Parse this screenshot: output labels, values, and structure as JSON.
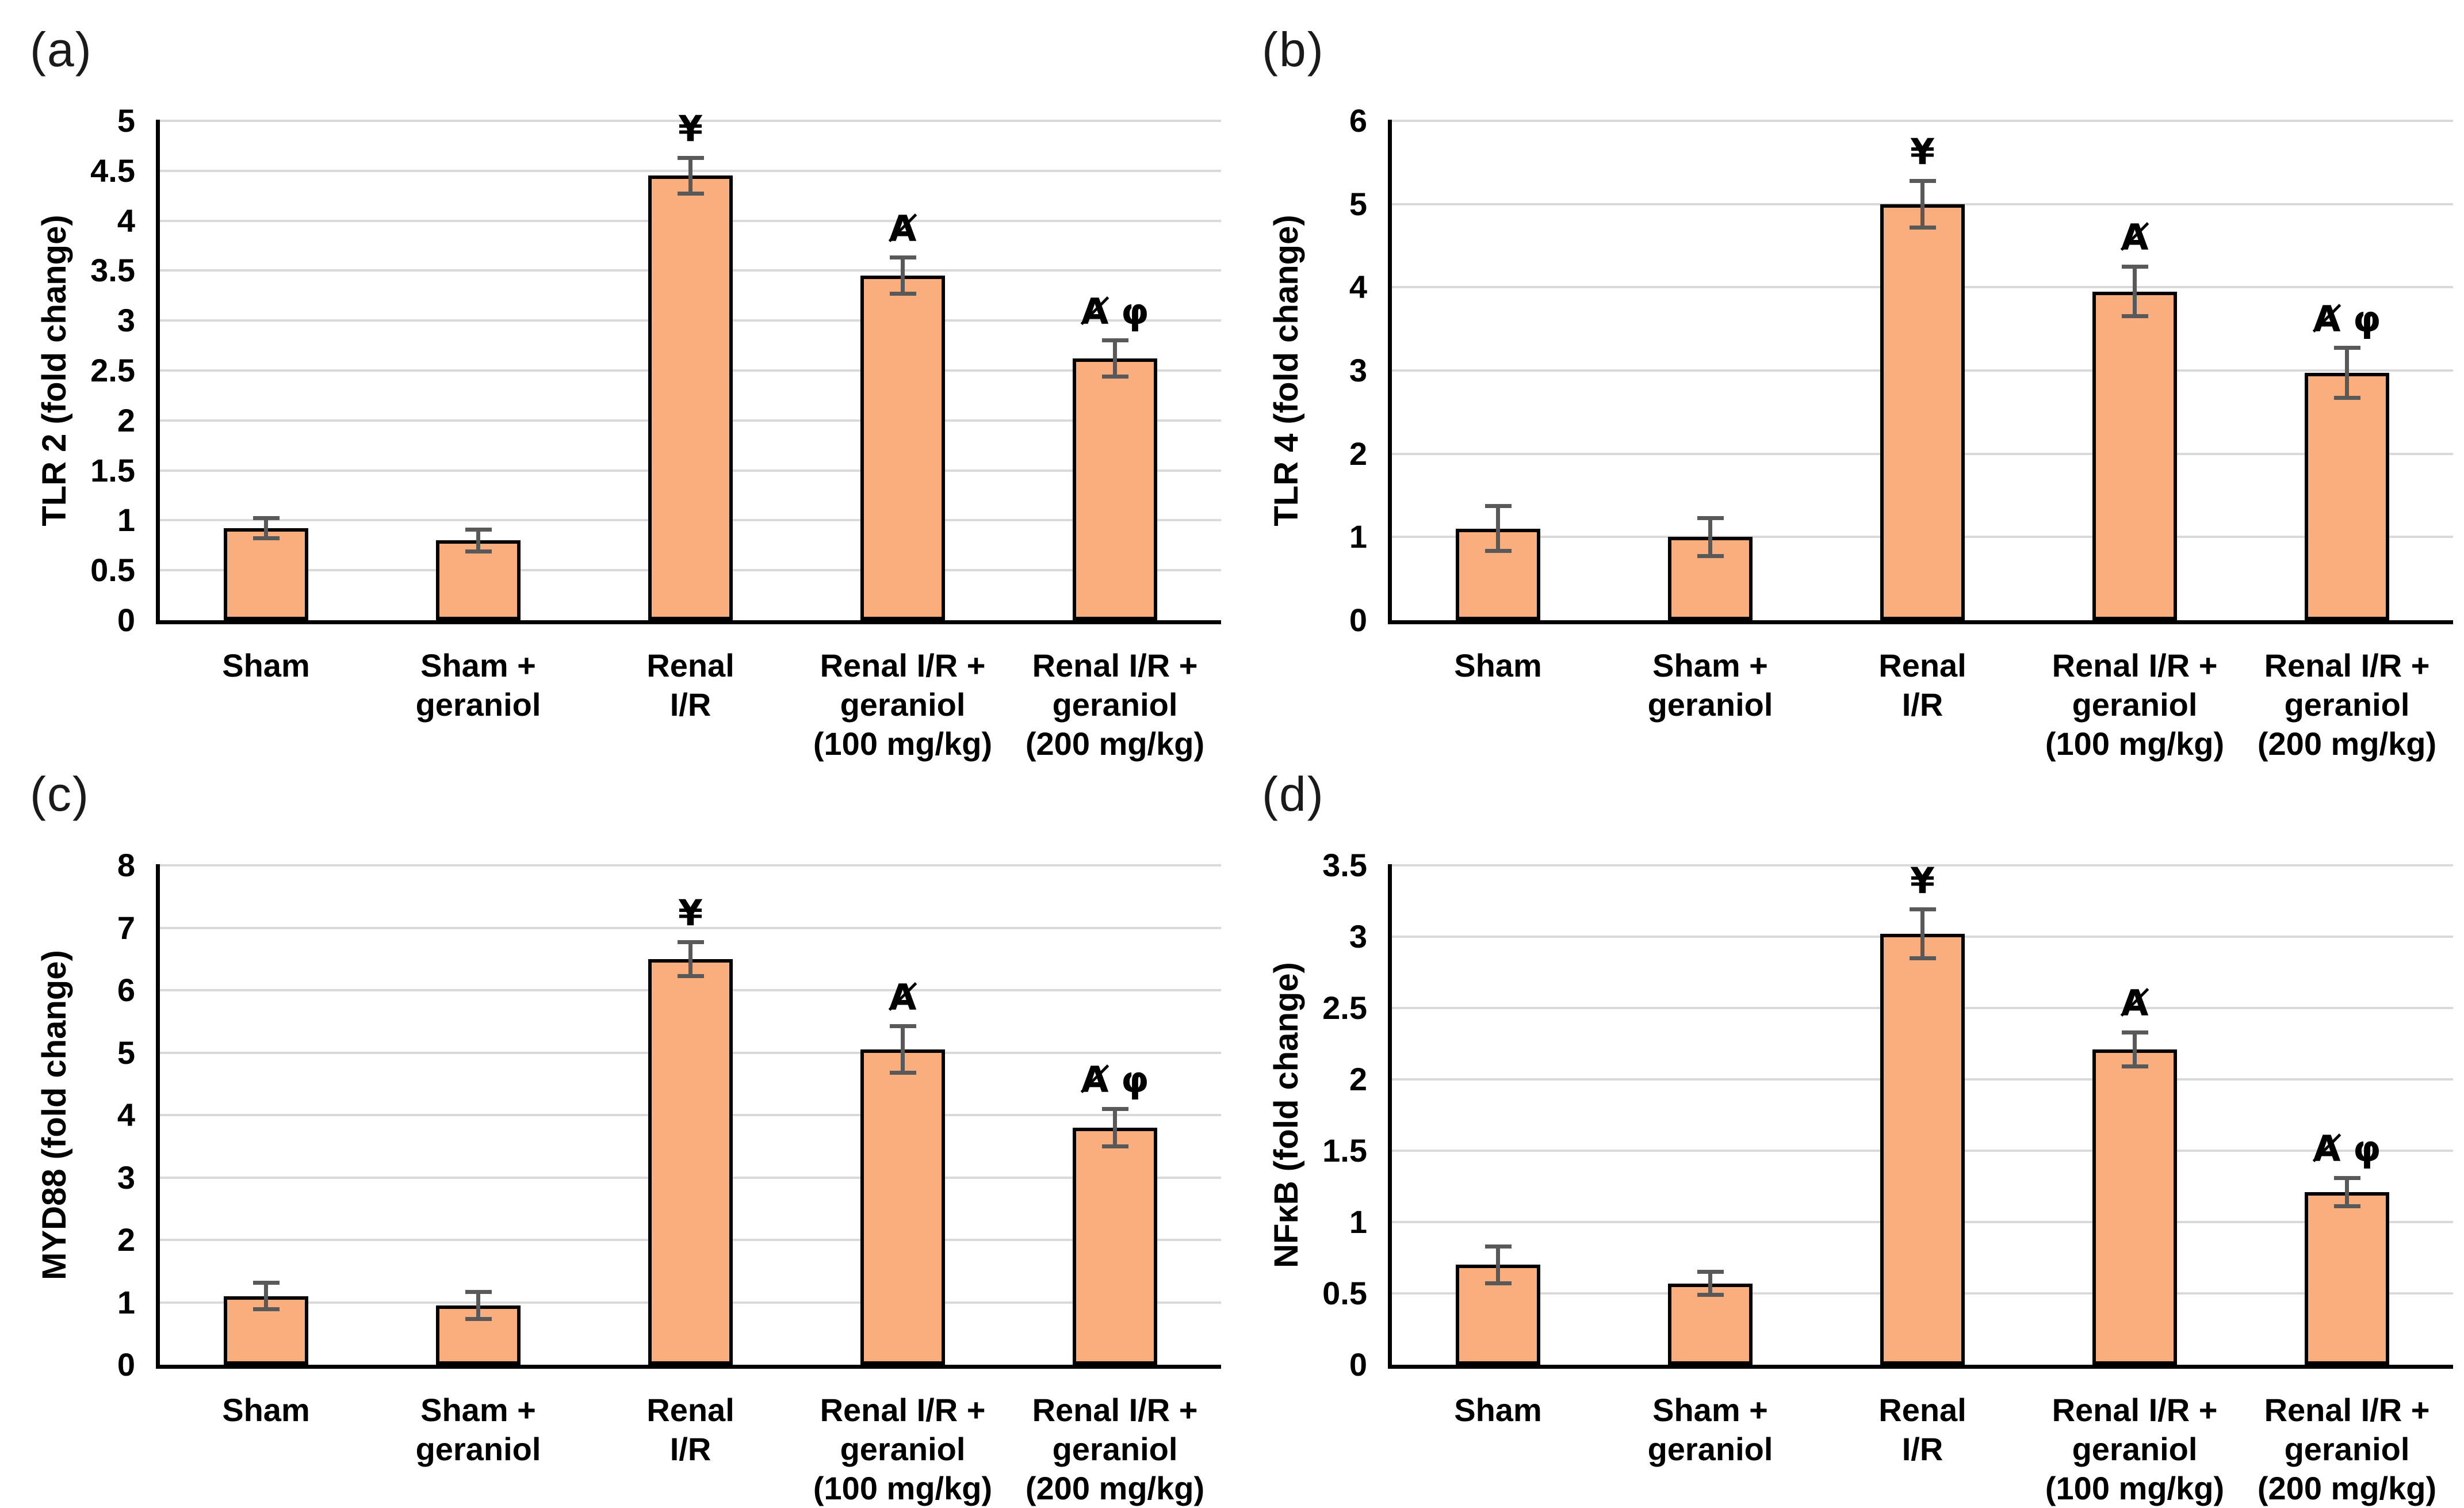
{
  "figure": {
    "panel_labels": [
      "(a)",
      "(b)",
      "(c)",
      "(d)"
    ],
    "colors": {
      "bar_fill": "#FBAE7D",
      "bar_border": "#000000",
      "error_bar": "#595959",
      "gridline": "#D9D9D9",
      "axis": "#000000",
      "background": "#FFFFFF"
    }
  },
  "chart_data": [
    {
      "type": "bar",
      "panel_label": "(a)",
      "ylabel": "TLR 2 (fold change)",
      "ylim": [
        0,
        5
      ],
      "yticks": [
        "5",
        "4.5",
        "4",
        "3.5",
        "3",
        "2.5",
        "2",
        "1.5",
        "1",
        "0.5",
        "0"
      ],
      "grid": true,
      "categories": [
        "Sham",
        "Sham + geraniol",
        "Renal I/R",
        "Renal I/R + geraniol (100 mg/kg)",
        "Renal I/R + geraniol (200 mg/kg)"
      ],
      "category_lines": [
        [
          "Sham"
        ],
        [
          "Sham +",
          "geraniol"
        ],
        [
          "Renal",
          "I/R"
        ],
        [
          "Renal I/R +",
          "geraniol",
          "(100 mg/kg)"
        ],
        [
          "Renal I/R +",
          "geraniol",
          "(200 mg/kg)"
        ]
      ],
      "values": [
        0.92,
        0.8,
        4.45,
        3.45,
        2.62
      ],
      "errors": [
        0.1,
        0.11,
        0.18,
        0.18,
        0.18
      ],
      "symbols": [
        "",
        "",
        "¥",
        "Ⱥ",
        "Ⱥ φ"
      ]
    },
    {
      "type": "bar",
      "panel_label": "(b)",
      "ylabel": "TLR 4 (fold change)",
      "ylim": [
        0,
        6
      ],
      "yticks": [
        "6",
        "5",
        "4",
        "3",
        "2",
        "1",
        "0"
      ],
      "grid": true,
      "categories": [
        "Sham",
        "Sham + geraniol",
        "Renal I/R",
        "Renal I/R + geraniol (100 mg/kg)",
        "Renal I/R + geraniol (200 mg/kg)"
      ],
      "category_lines": [
        [
          "Sham"
        ],
        [
          "Sham +",
          "geraniol"
        ],
        [
          "Renal",
          "I/R"
        ],
        [
          "Renal I/R +",
          "geraniol",
          "(100 mg/kg)"
        ],
        [
          "Renal I/R +",
          "geraniol",
          "(200 mg/kg)"
        ]
      ],
      "values": [
        1.1,
        1.0,
        5.0,
        3.95,
        2.97
      ],
      "errors": [
        0.27,
        0.23,
        0.28,
        0.3,
        0.3
      ],
      "symbols": [
        "",
        "",
        "¥",
        "Ⱥ",
        "Ⱥ φ"
      ]
    },
    {
      "type": "bar",
      "panel_label": "(c)",
      "ylabel": "MYD88 (fold change)",
      "ylim": [
        0,
        8
      ],
      "yticks": [
        "8",
        "7",
        "6",
        "5",
        "4",
        "3",
        "2",
        "1",
        "0"
      ],
      "grid": true,
      "categories": [
        "Sham",
        "Sham + geraniol",
        "Renal I/R",
        "Renal I/R + geraniol (100 mg/kg)",
        "Renal I/R + geraniol (200 mg/kg)"
      ],
      "category_lines": [
        [
          "Sham"
        ],
        [
          "Sham +",
          "geraniol"
        ],
        [
          "Renal",
          "I/R"
        ],
        [
          "Renal I/R +",
          "geraniol",
          "(100 mg/kg)"
        ],
        [
          "Renal I/R +",
          "geraniol",
          "(200 mg/kg)"
        ]
      ],
      "values": [
        1.1,
        0.95,
        6.5,
        5.05,
        3.8
      ],
      "errors": [
        0.21,
        0.22,
        0.27,
        0.37,
        0.3
      ],
      "symbols": [
        "",
        "",
        "¥",
        "Ⱥ",
        "Ⱥ φ"
      ]
    },
    {
      "type": "bar",
      "panel_label": "(d)",
      "ylabel": "NFκB (fold change)",
      "ylim": [
        0,
        3.5
      ],
      "yticks": [
        "3.5",
        "3",
        "2.5",
        "2",
        "1.5",
        "1",
        "0.5",
        "0"
      ],
      "grid": true,
      "categories": [
        "Sham",
        "Sham + geraniol",
        "Renal I/R",
        "Renal I/R + geraniol (100 mg/kg)",
        "Renal I/R + geraniol (200 mg/kg)"
      ],
      "category_lines": [
        [
          "Sham"
        ],
        [
          "Sham +",
          "geraniol"
        ],
        [
          "Renal",
          "I/R"
        ],
        [
          "Renal I/R +",
          "geraniol",
          "(100 mg/kg)"
        ],
        [
          "Renal I/R +",
          "geraniol",
          "(200 mg/kg)"
        ]
      ],
      "values": [
        0.7,
        0.57,
        3.02,
        2.21,
        1.21
      ],
      "errors": [
        0.13,
        0.08,
        0.17,
        0.12,
        0.1
      ],
      "symbols": [
        "",
        "",
        "¥",
        "Ⱥ",
        "Ⱥ φ"
      ]
    }
  ]
}
